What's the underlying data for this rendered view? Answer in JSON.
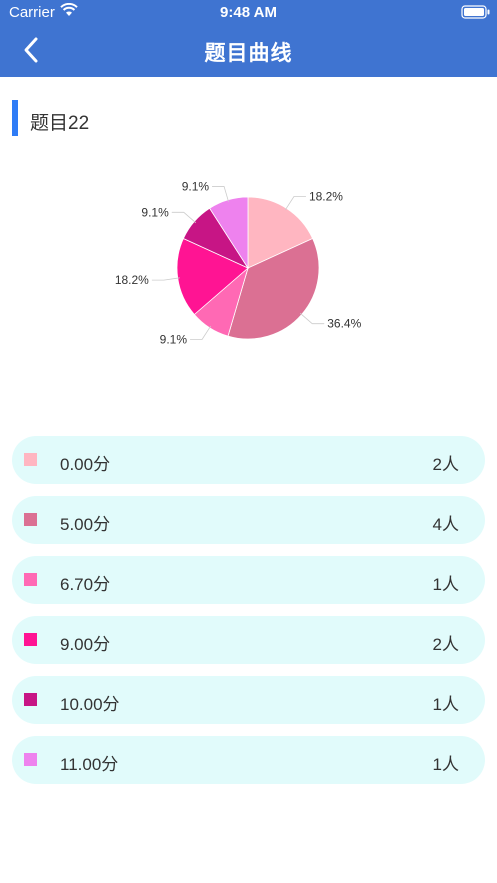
{
  "status_bar": {
    "carrier": "Carrier",
    "time": "9:48 AM"
  },
  "nav": {
    "title": "题目曲线"
  },
  "section": {
    "title": "题目22"
  },
  "colors": {
    "header": "#3f74d1",
    "title_marker": "#2f7cf6",
    "row_background": "#e1fbfb",
    "slices": [
      "#ffb6c1",
      "#db7093",
      "#ff69b4",
      "#ff1493",
      "#c71585",
      "#ee82ee"
    ]
  },
  "icons": [
    "wifi-icon",
    "battery-icon",
    "back-chevron-icon"
  ],
  "chart_data": {
    "type": "pie",
    "slices": [
      {
        "label": "0.00分",
        "count": 2,
        "percent_label": "18.2%"
      },
      {
        "label": "5.00分",
        "count": 4,
        "percent_label": "36.4%"
      },
      {
        "label": "6.70分",
        "count": 1,
        "percent_label": "9.1%"
      },
      {
        "label": "9.00分",
        "count": 2,
        "percent_label": "18.2%"
      },
      {
        "label": "10.00分",
        "count": 1,
        "percent_label": "9.1%"
      },
      {
        "label": "11.00分",
        "count": 1,
        "percent_label": "9.1%"
      }
    ]
  },
  "legend": {
    "items": [
      {
        "score": "0.00分",
        "count": "2人"
      },
      {
        "score": "5.00分",
        "count": "4人"
      },
      {
        "score": "6.70分",
        "count": "1人"
      },
      {
        "score": "9.00分",
        "count": "2人"
      },
      {
        "score": "10.00分",
        "count": "1人"
      },
      {
        "score": "11.00分",
        "count": "1人"
      }
    ]
  }
}
